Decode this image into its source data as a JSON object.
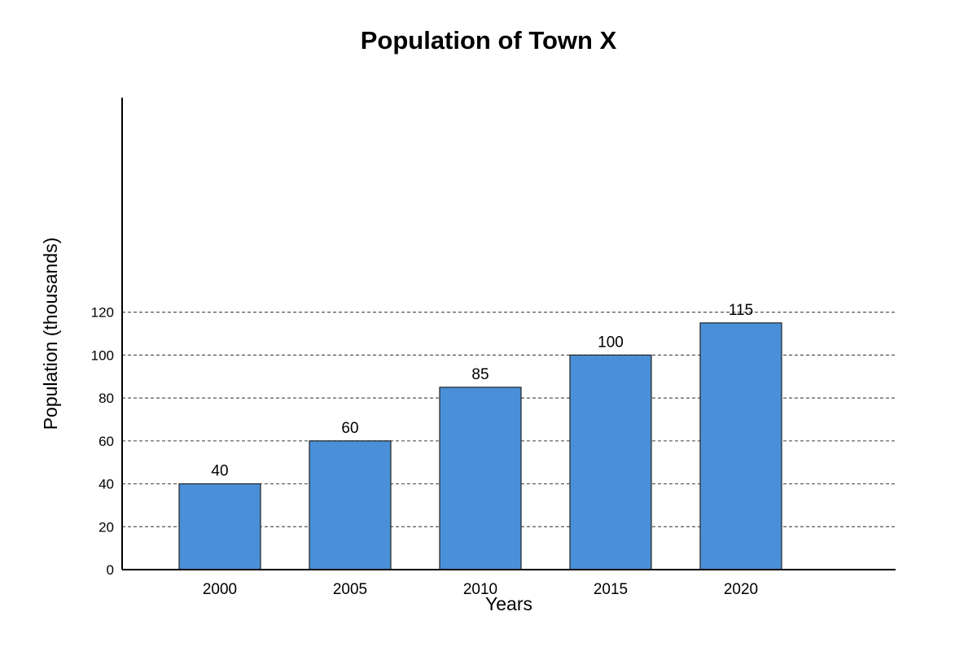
{
  "chart_data": {
    "type": "bar",
    "title": "Population of Town X",
    "xlabel": "Years",
    "ylabel": "Population (thousands)",
    "categories": [
      "2000",
      "2005",
      "2010",
      "2015",
      "2020"
    ],
    "values": [
      40,
      60,
      85,
      100,
      115
    ],
    "data_labels": [
      "40",
      "60",
      "85",
      "100",
      "115"
    ],
    "y_ticks": [
      0,
      20,
      40,
      60,
      80,
      100,
      120
    ],
    "y_tick_labels": [
      "0",
      "20",
      "40",
      "60",
      "80",
      "100",
      "120"
    ],
    "ylim": [
      0,
      220
    ],
    "grid": true,
    "colors": {
      "bar": "#4a90d9"
    }
  }
}
